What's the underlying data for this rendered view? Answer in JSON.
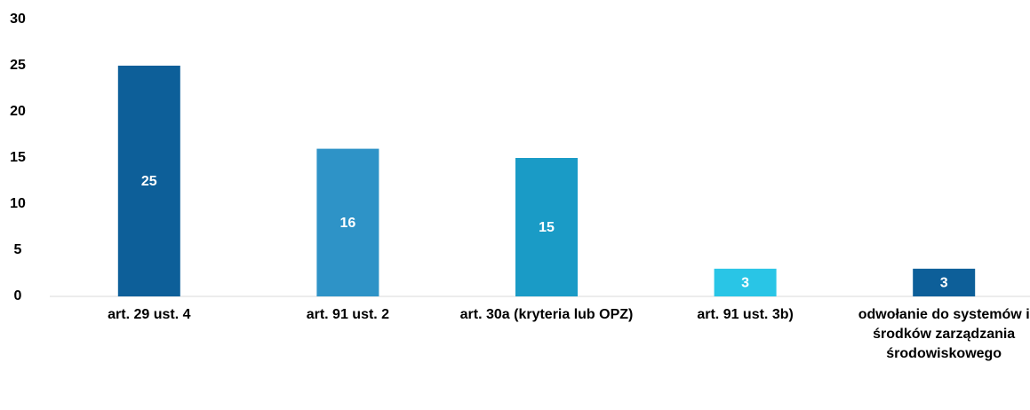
{
  "chart_data": {
    "type": "bar",
    "categories": [
      "art. 29 ust. 4",
      "art. 91 ust. 2",
      "art. 30a (kryteria lub OPZ)",
      "art. 91 ust. 3b)",
      "odwołanie do systemów i środków zarządzania środowiskowego"
    ],
    "values": [
      25,
      16,
      15,
      3,
      3
    ],
    "colors": [
      "#0d5f99",
      "#2e93c7",
      "#1a9bc6",
      "#29c5e6",
      "#0d5f99"
    ],
    "ylim": [
      0,
      30
    ],
    "yticks": [
      0,
      5,
      10,
      15,
      20,
      25,
      30
    ],
    "grid": false
  }
}
